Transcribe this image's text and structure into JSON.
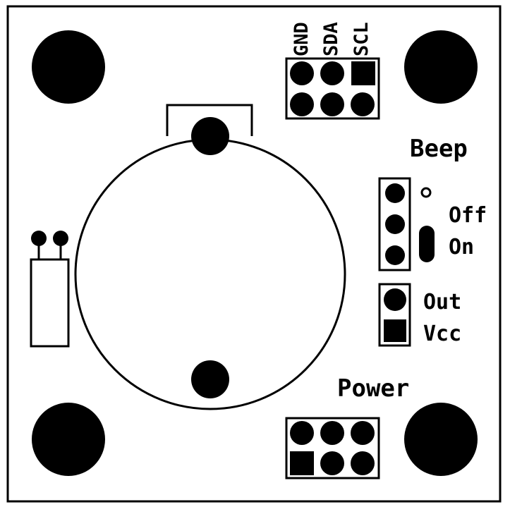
{
  "colors": {
    "ink": "#000000",
    "board": "#ffffff"
  },
  "labels": {
    "gnd": "GND",
    "sda": "SDA",
    "scl": "SCL",
    "beep": "Beep",
    "off": "Off",
    "on": "On",
    "out": "Out",
    "vcc": "Vcc",
    "power": "Power"
  }
}
